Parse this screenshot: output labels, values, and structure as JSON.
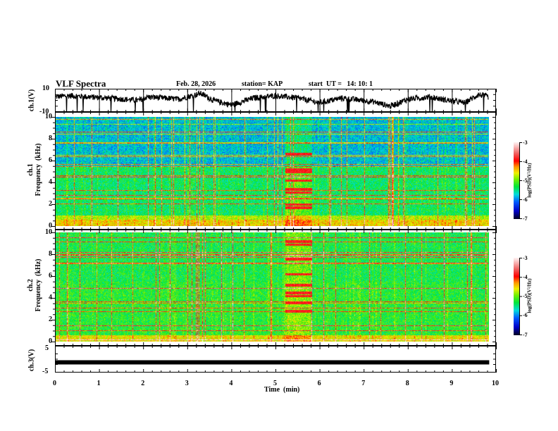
{
  "header": {
    "title": "VLF Spectra",
    "date": "Feb. 28, 2026",
    "station": "station= KAP",
    "start": "start  UT =   14: 10: 1"
  },
  "chart_data": [
    {
      "type": "line",
      "name": "ch1-waveform",
      "ylabel": "ch.1(V)",
      "ylim": [
        -10,
        10
      ],
      "yticks": [
        "10",
        "-10"
      ],
      "xlim": [
        0,
        10
      ],
      "x_end": 9.83,
      "series": [
        {
          "name": "ch.1",
          "description_values": "noisy signal fluctuating roughly between -10 and 10 V, mostly near 3 V"
        }
      ]
    },
    {
      "type": "heatmap",
      "name": "ch1-spectrogram",
      "ylabel_line1": "ch.1",
      "ylabel_line2": "Frequency  (kHz)",
      "ylim": [
        0,
        10
      ],
      "yticks": [
        "0",
        "2",
        "4",
        "6",
        "8",
        "10"
      ],
      "xlim": [
        0,
        10
      ],
      "x_end": 9.83,
      "colorbar": {
        "label": "log(PSD)(V²/Hz)",
        "range": [
          -7,
          -3
        ],
        "ticks": [
          "-3",
          "-4",
          "-5",
          "-6",
          "-7"
        ]
      },
      "event": {
        "x_start": 5.2,
        "x_end": 5.8
      }
    },
    {
      "type": "heatmap",
      "name": "ch2-spectrogram",
      "ylabel_line1": "ch.2",
      "ylabel_line2": "Frequency  (kHz)",
      "ylim": [
        0,
        10
      ],
      "yticks": [
        "0",
        "2",
        "4",
        "6",
        "8",
        "10"
      ],
      "xlim": [
        0,
        10
      ],
      "x_end": 9.83,
      "colorbar": {
        "label": "log(PSD)(V²/Hz)",
        "range": [
          -7,
          -3
        ],
        "ticks": [
          "-3",
          "-4",
          "-5",
          "-6",
          "-7"
        ]
      },
      "event": {
        "x_start": 5.2,
        "x_end": 5.8
      }
    },
    {
      "type": "line",
      "name": "ch3-waveform",
      "ylabel": "ch.3(V)",
      "ylim": [
        -5,
        5
      ],
      "yticks": [
        "5",
        "-5"
      ],
      "xlim": [
        0,
        10
      ],
      "x_end": 9.83,
      "series": [
        {
          "name": "ch.3",
          "constant_value": -1.5
        }
      ]
    }
  ],
  "xaxis": {
    "label": "Time  (min)",
    "ticks": [
      "0",
      "1",
      "2",
      "3",
      "4",
      "5",
      "6",
      "7",
      "8",
      "9",
      "10"
    ]
  }
}
